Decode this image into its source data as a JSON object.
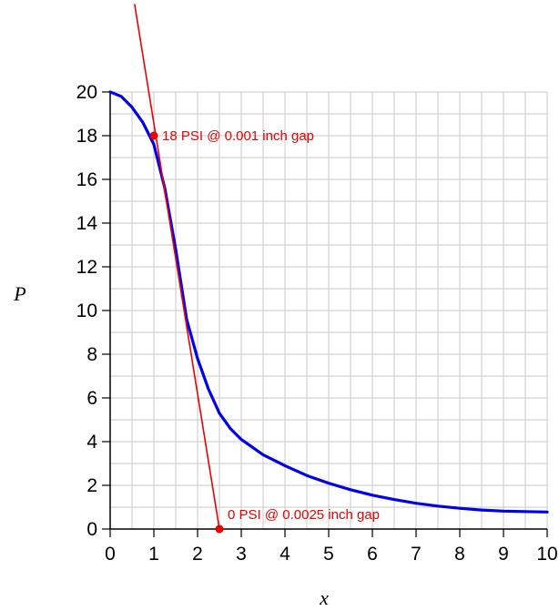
{
  "chart_data": {
    "type": "line",
    "xlabel": "x",
    "ylabel": "P",
    "xlim": [
      0,
      10
    ],
    "ylim": [
      0,
      20
    ],
    "x_ticks": [
      0,
      1,
      2,
      3,
      4,
      5,
      6,
      7,
      8,
      9,
      10
    ],
    "y_ticks": [
      0,
      2,
      4,
      6,
      8,
      10,
      12,
      14,
      16,
      18,
      20
    ],
    "grid": true,
    "series": [
      {
        "color": "#0000ee",
        "x": [
          0,
          0.25,
          0.5,
          0.75,
          1,
          1.25,
          1.5,
          1.75,
          2,
          2.25,
          2.5,
          2.75,
          3,
          3.5,
          4,
          4.5,
          5,
          5.5,
          6,
          6.5,
          7,
          7.5,
          8,
          8.5,
          9,
          9.5,
          10
        ],
        "y": [
          20,
          19.8,
          19.3,
          18.6,
          17.6,
          15.6,
          12.8,
          9.6,
          7.8,
          6.4,
          5.3,
          4.6,
          4.1,
          3.4,
          2.9,
          2.45,
          2.1,
          1.8,
          1.55,
          1.35,
          1.18,
          1.05,
          0.95,
          0.87,
          0.82,
          0.8,
          0.78
        ]
      },
      {
        "color": "#ee0000",
        "x": [
          0.56,
          2.5
        ],
        "y": [
          24,
          0
        ]
      }
    ],
    "points": [
      {
        "x": 1,
        "y": 18,
        "label": "18 PSI @ 0.001 inch gap",
        "color": "#ee0000"
      },
      {
        "x": 2.5,
        "y": 0,
        "label": "0 PSI @ 0.0025 inch gap",
        "color": "#ee0000"
      }
    ]
  }
}
